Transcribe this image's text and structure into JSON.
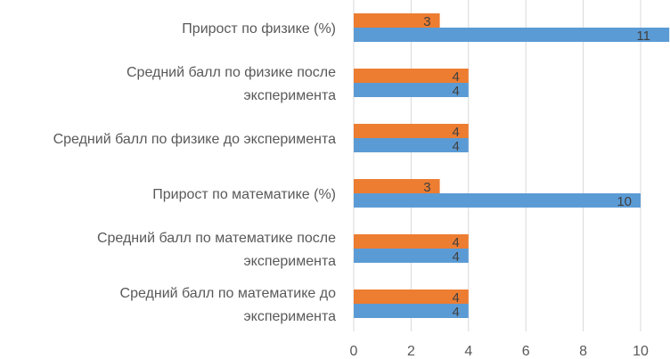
{
  "chart_data": {
    "type": "bar",
    "orientation": "horizontal",
    "title": "",
    "xlabel": "",
    "ylabel": "",
    "categories": [
      [
        "Средний балл по математике до",
        "эксперимента"
      ],
      [
        "Средний балл по математике после",
        "эксперимента"
      ],
      [
        "Прирост по математике (%)"
      ],
      [
        "Средний балл по физике до эксперимента"
      ],
      [
        "Средний балл по физике после",
        "эксперимента"
      ],
      [
        "Прирост по физике (%)"
      ]
    ],
    "series": [
      {
        "color": "#5b9bd5",
        "values": [
          4,
          4,
          10,
          4,
          4,
          11
        ]
      },
      {
        "color": "#ed7d31",
        "values": [
          4,
          4,
          3,
          4,
          4,
          3
        ]
      }
    ],
    "xlim": [
      0,
      10
    ],
    "xticks": [
      0,
      2,
      4,
      6,
      8,
      10
    ],
    "grid": true,
    "legend": "none",
    "data_labels": true
  }
}
